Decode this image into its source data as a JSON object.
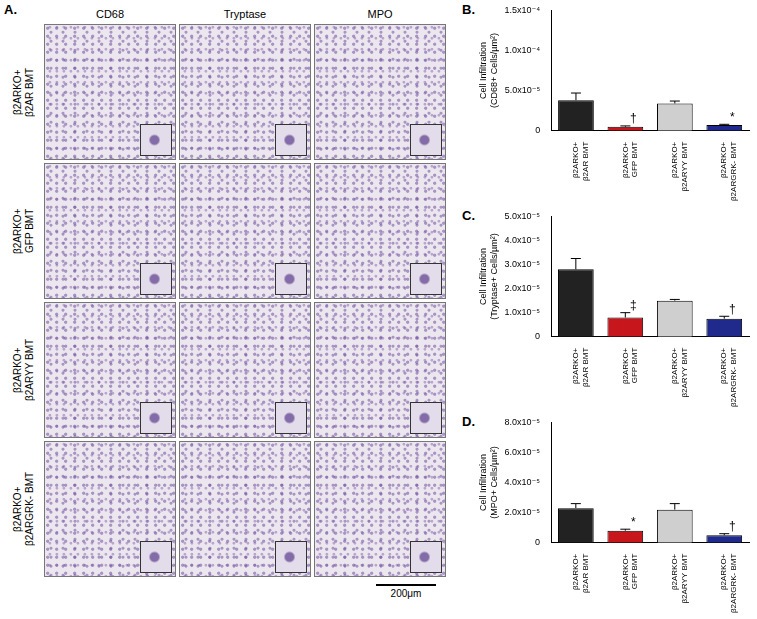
{
  "panel_a": {
    "label": "A.",
    "columns": [
      "CD68",
      "Tryptase",
      "MPO"
    ],
    "rows": [
      "β2ARKO+ β2AR BMT",
      "β2ARKO+ GFP BMT",
      "β2ARKO+ β2ARYY BMT",
      "β2ARKO+ β2ARGRK- BMT"
    ],
    "scale_bar": "200μm"
  },
  "chart_data": [
    {
      "type": "bar",
      "label": "B.",
      "ylabel": [
        "Cell Infiltration",
        "(CD68+ Cells/µm²)"
      ],
      "categories": [
        "β2ARKO+ β2AR BMT",
        "β2ARKO+ GFP BMT",
        "β2ARKO+ β2ARYY BMT",
        "β2ARKO+ β2ARGRK- BMT"
      ],
      "values": [
        3.8e-05,
        5e-06,
        3.4e-05,
        7e-06
      ],
      "errors": [
        9e-06,
        1e-06,
        3e-06,
        1e-06
      ],
      "annotations": [
        null,
        "†",
        null,
        "*"
      ],
      "colors": [
        "#222222",
        "#c8161d",
        "#cfcfcf",
        "#1f2a8c"
      ],
      "ylim": [
        0,
        0.00015
      ],
      "yticks": [
        0,
        {
          "value": 5e-05,
          "label": "5.0x10⁻⁵"
        },
        {
          "value": 0.0001,
          "label": "1.0x10⁻⁴"
        },
        {
          "value": 0.00015,
          "label": "1.5x10⁻⁴"
        }
      ],
      "grid": false
    },
    {
      "type": "bar",
      "label": "C.",
      "ylabel": [
        "Cell Infiltration",
        "(Tryptase+ Cells/µm²)"
      ],
      "categories": [
        "β2ARKO+ β2AR BMT",
        "β2ARKO+ GFP BMT",
        "β2ARKO+ β2ARYY BMT",
        "β2ARKO+ β2ARGRK- BMT"
      ],
      "values": [
        2.8e-05,
        8e-06,
        1.5e-05,
        7.5e-06
      ],
      "errors": [
        4.5e-06,
        2e-06,
        5e-07,
        1e-06
      ],
      "annotations": [
        null,
        "‡",
        null,
        "†"
      ],
      "colors": [
        "#222222",
        "#c8161d",
        "#cfcfcf",
        "#1f2a8c"
      ],
      "ylim": [
        0,
        5e-05
      ],
      "yticks": [
        0,
        {
          "value": 1e-05,
          "label": "1.0x10⁻⁵"
        },
        {
          "value": 2e-05,
          "label": "2.0x10⁻⁵"
        },
        {
          "value": 3e-05,
          "label": "3.0x10⁻⁵"
        },
        {
          "value": 4e-05,
          "label": "4.0x10⁻⁵"
        },
        {
          "value": 5e-05,
          "label": "5.0x10⁻⁵"
        }
      ],
      "grid": false
    },
    {
      "type": "bar",
      "label": "D.",
      "ylabel": [
        "Cell Infiltration",
        "(MPO+ Cells/µm²)"
      ],
      "categories": [
        "β2ARKO+ β2AR BMT",
        "β2ARKO+ GFP BMT",
        "β2ARKO+ β2ARYY BMT",
        "β2ARKO+ β2ARGRK- BMT"
      ],
      "values": [
        2.3e-05,
        8e-06,
        2.2e-05,
        5e-06
      ],
      "errors": [
        3e-06,
        1e-06,
        4e-06,
        1e-06
      ],
      "annotations": [
        null,
        "*",
        null,
        "†"
      ],
      "colors": [
        "#222222",
        "#c8161d",
        "#cfcfcf",
        "#1f2a8c"
      ],
      "ylim": [
        0,
        8e-05
      ],
      "yticks": [
        0,
        {
          "value": 2e-05,
          "label": "2.0x10⁻⁵"
        },
        {
          "value": 4e-05,
          "label": "4.0x10⁻⁵"
        },
        {
          "value": 6e-05,
          "label": "6.0x10⁻⁵"
        },
        {
          "value": 8e-05,
          "label": "8.0x10⁻⁵"
        }
      ],
      "grid": false
    }
  ]
}
